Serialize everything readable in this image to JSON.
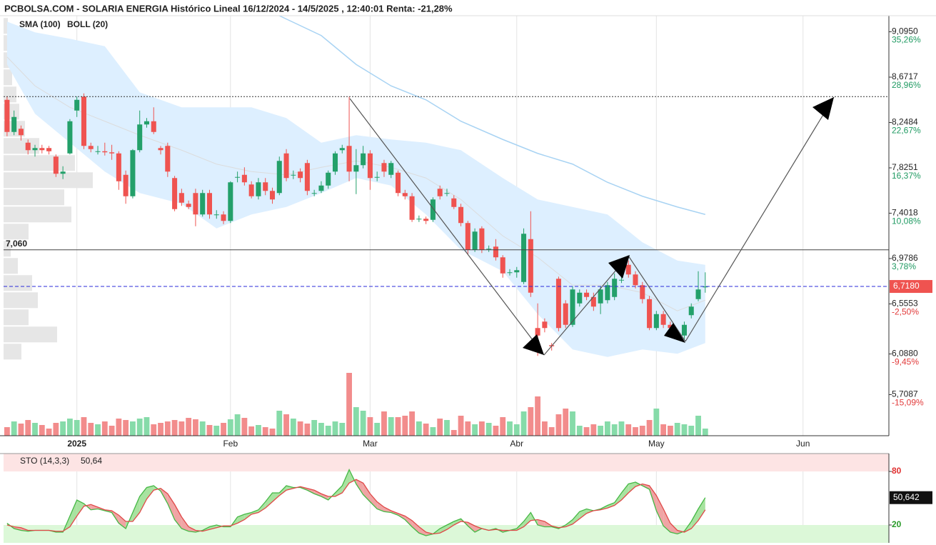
{
  "chart_data": [
    {
      "type": "candlestick",
      "title": "PCBOLSA.COM - SOLARIA ENERGIA Histórico Lineal 16/12/2024 - 14/5/2025 , 12:40:01 Renta: -21,28%",
      "xlim": [
        -0.5,
        126.3
      ],
      "xticks": [
        {
          "value": 10,
          "label": "2025"
        },
        {
          "value": 32,
          "label": "Feb"
        },
        {
          "value": 52,
          "label": "Mar"
        },
        {
          "value": 73,
          "label": "Abr"
        },
        {
          "value": 93,
          "label": "May"
        },
        {
          "value": 114,
          "label": "Jun"
        }
      ],
      "ylim": [
        5.325,
        9.245
      ],
      "yticks": [
        {
          "value": 9.095,
          "label": "9,0950"
        },
        {
          "value": 8.6717,
          "label": "8,6717"
        },
        {
          "value": 8.2484,
          "label": "8,2484"
        },
        {
          "value": 7.8251,
          "label": "7,8251"
        },
        {
          "value": 7.4018,
          "label": "7,4018"
        },
        {
          "value": 6.9786,
          "label": "6,9786"
        },
        {
          "value": 6.5553,
          "label": "6,5553"
        },
        {
          "value": 6.088,
          "label": "6,0880"
        },
        {
          "value": 5.7087,
          "label": "5,7087"
        }
      ],
      "y2lim": [
        -20.8,
        37.49
      ],
      "y2ticks": [
        {
          "value": 35.26,
          "label": "35,26%"
        },
        {
          "value": 28.96,
          "label": "28,96%"
        },
        {
          "value": 22.67,
          "label": "22,67%"
        },
        {
          "value": 16.37,
          "label": "16,37%"
        },
        {
          "value": 10.08,
          "label": "10,08%"
        },
        {
          "value": 3.78,
          "label": "3,78%"
        },
        {
          "value": -2.5,
          "label": "-2,50%"
        },
        {
          "value": -9.45,
          "label": "-9,45%"
        },
        {
          "value": -15.09,
          "label": "-15,09%"
        }
      ],
      "up_color": "#23a06a",
      "down_color": "#ef5350",
      "volume_up_color": "#86dba9",
      "volume_down_color": "#f28c8c",
      "open": [
        8.46,
        8.16,
        8.19,
        8.06,
        7.99,
        8.01,
        8.01,
        7.93,
        7.77,
        7.96,
        8.36,
        8.49,
        8.03,
        7.98,
        7.98,
        7.97,
        7.96,
        7.76,
        7.56,
        7.99,
        8.23,
        8.26,
        8.01,
        8.03,
        7.73,
        7.59,
        7.49,
        7.59,
        7.39,
        7.59,
        7.39,
        7.39,
        7.33,
        7.74,
        7.76,
        7.67,
        7.56,
        7.69,
        7.61,
        7.59,
        7.96,
        7.76,
        7.79,
        7.87,
        7.59,
        7.61,
        7.66,
        7.79,
        7.99,
        8.03,
        7.79,
        7.85,
        7.96,
        7.74,
        7.87,
        7.76,
        7.78,
        7.59,
        7.56,
        7.35,
        7.35,
        7.34,
        7.63,
        7.59,
        7.54,
        7.46,
        7.31,
        7.06,
        7.26,
        7.07,
        7.09,
        6.99,
        6.85,
        6.85,
        6.76,
        7.16,
        6.33,
        6.39,
        6.17,
        6.79,
        6.56,
        6.36,
        6.56,
        6.66,
        6.62,
        6.56,
        6.59,
        6.62,
        6.78,
        6.92,
        6.83,
        6.73,
        6.6,
        6.33,
        6.46,
        6.36,
        6.29,
        6.26,
        6.45,
        6.6,
        6.71
      ],
      "high": [
        8.49,
        8.36,
        8.22,
        8.09,
        8.04,
        8.04,
        8.03,
        7.95,
        7.84,
        8.28,
        8.49,
        8.52,
        8.06,
        8.03,
        8.06,
        8.04,
        7.98,
        7.8,
        8.0,
        8.36,
        8.29,
        8.39,
        8.03,
        8.06,
        7.75,
        7.63,
        7.52,
        7.63,
        7.62,
        7.62,
        7.43,
        7.42,
        7.7,
        7.79,
        7.83,
        7.7,
        7.73,
        7.73,
        7.64,
        7.93,
        8.0,
        7.8,
        7.82,
        7.9,
        7.62,
        7.7,
        7.8,
        7.98,
        8.04,
        8.49,
        8.0,
        8.03,
        7.99,
        7.79,
        7.9,
        7.89,
        7.8,
        7.62,
        7.59,
        7.38,
        7.37,
        7.55,
        7.66,
        7.63,
        7.57,
        7.49,
        7.33,
        7.26,
        7.28,
        7.1,
        7.16,
        7.01,
        6.88,
        6.9,
        7.26,
        7.42,
        6.56,
        6.42,
        6.19,
        6.81,
        6.59,
        6.72,
        6.69,
        6.69,
        6.66,
        6.72,
        6.76,
        6.84,
        6.82,
        6.96,
        6.86,
        6.76,
        6.63,
        6.49,
        6.49,
        6.39,
        6.32,
        6.39,
        6.56,
        6.86,
        6.85
      ],
      "low": [
        8.12,
        8.13,
        8.08,
        7.95,
        7.93,
        7.96,
        7.95,
        7.74,
        7.72,
        7.95,
        8.3,
        8.0,
        7.97,
        7.95,
        7.94,
        7.9,
        7.62,
        7.49,
        7.54,
        7.97,
        8.2,
        8.14,
        7.95,
        7.74,
        7.42,
        7.47,
        7.44,
        7.28,
        7.37,
        7.35,
        7.35,
        7.3,
        7.31,
        7.69,
        7.66,
        7.54,
        7.53,
        7.57,
        7.49,
        7.57,
        7.7,
        7.72,
        7.69,
        7.57,
        7.56,
        7.59,
        7.63,
        7.76,
        7.96,
        7.7,
        7.58,
        7.82,
        7.62,
        7.7,
        7.74,
        7.73,
        7.56,
        7.53,
        7.32,
        7.32,
        7.3,
        7.32,
        7.53,
        7.56,
        7.44,
        7.28,
        7.02,
        7.04,
        7.03,
        7.04,
        6.96,
        6.8,
        6.82,
        6.8,
        6.74,
        6.62,
        6.07,
        6.29,
        6.12,
        6.3,
        6.33,
        6.34,
        6.53,
        6.59,
        6.49,
        6.46,
        6.56,
        6.59,
        6.75,
        6.8,
        6.7,
        6.56,
        6.31,
        6.31,
        6.33,
        6.29,
        6.26,
        6.22,
        6.42,
        6.58,
        6.66
      ],
      "close": [
        8.16,
        8.3,
        8.13,
        7.99,
        8.01,
        7.99,
        7.98,
        7.77,
        7.79,
        8.26,
        8.46,
        8.03,
        8.0,
        7.98,
        7.97,
        7.96,
        7.7,
        7.56,
        7.99,
        8.23,
        8.26,
        8.16,
        7.99,
        7.79,
        7.44,
        7.5,
        7.46,
        7.39,
        7.59,
        7.39,
        7.39,
        7.33,
        7.69,
        7.74,
        7.69,
        7.56,
        7.69,
        7.61,
        7.53,
        7.89,
        7.73,
        7.76,
        7.73,
        7.61,
        7.59,
        7.66,
        7.78,
        7.96,
        8.01,
        7.79,
        7.85,
        7.96,
        7.73,
        7.74,
        7.79,
        7.87,
        7.59,
        7.56,
        7.34,
        7.35,
        7.33,
        7.53,
        7.56,
        7.59,
        7.46,
        7.31,
        7.06,
        7.23,
        7.06,
        7.07,
        6.99,
        6.84,
        6.85,
        6.87,
        7.21,
        6.66,
        6.26,
        6.33,
        6.16,
        6.33,
        6.36,
        6.69,
        6.66,
        6.62,
        6.53,
        6.69,
        6.73,
        6.79,
        6.78,
        6.83,
        6.73,
        6.6,
        6.33,
        6.46,
        6.36,
        6.33,
        6.29,
        6.36,
        6.53,
        6.69,
        6.718
      ],
      "vlim": [
        0,
        100
      ],
      "volume": [
        12,
        20,
        17,
        22,
        18,
        15,
        10,
        18,
        20,
        24,
        22,
        26,
        18,
        16,
        20,
        14,
        24,
        22,
        20,
        24,
        26,
        16,
        18,
        20,
        22,
        20,
        25,
        23,
        20,
        15,
        14,
        18,
        23,
        30,
        25,
        13,
        15,
        12,
        10,
        35,
        30,
        24,
        20,
        17,
        22,
        18,
        14,
        20,
        18,
        88,
        40,
        35,
        26,
        18,
        34,
        26,
        26,
        28,
        34,
        20,
        17,
        12,
        24,
        22,
        8,
        28,
        20,
        16,
        20,
        18,
        14,
        26,
        20,
        16,
        34,
        40,
        55,
        20,
        12,
        30,
        38,
        34,
        14,
        12,
        16,
        14,
        20,
        16,
        20,
        16,
        12,
        14,
        22,
        38,
        16,
        14,
        18,
        16,
        14,
        28,
        10
      ],
      "sma": {
        "name": "SMA (100)",
        "color": "#a8d3f3",
        "x": [
          39,
          45,
          50,
          55,
          60,
          65,
          71,
          76,
          81,
          86,
          91,
          96,
          100
        ],
        "values": [
          9.245,
          9.06,
          8.79,
          8.59,
          8.46,
          8.26,
          8.09,
          7.96,
          7.86,
          7.69,
          7.56,
          7.46,
          7.39
        ]
      },
      "bollinger": {
        "name": "BOLL (20)",
        "color": "#c3d3e0",
        "fill": "#ddefff",
        "x": [
          0,
          4,
          9,
          14,
          19,
          25,
          30,
          35,
          40,
          45,
          50,
          55,
          60,
          65,
          71,
          76,
          81,
          86,
          91,
          96,
          100
        ],
        "upper": [
          9.19,
          9.09,
          9.03,
          8.96,
          8.53,
          8.39,
          8.39,
          8.39,
          8.29,
          8.06,
          8.13,
          8.09,
          8.06,
          7.99,
          7.73,
          7.53,
          7.46,
          7.39,
          7.13,
          6.96,
          6.92
        ],
        "middle": [
          8.86,
          8.59,
          8.39,
          8.26,
          8.13,
          7.99,
          7.86,
          7.79,
          7.76,
          7.83,
          7.89,
          7.83,
          7.73,
          7.53,
          7.19,
          6.99,
          6.73,
          6.73,
          6.66,
          6.49,
          6.59
        ],
        "lower": [
          8.79,
          8.33,
          8.06,
          7.79,
          7.59,
          7.49,
          7.26,
          7.39,
          7.46,
          7.59,
          7.73,
          7.66,
          7.39,
          7.06,
          6.86,
          6.46,
          6.13,
          6.06,
          6.13,
          6.09,
          6.19
        ]
      },
      "volume_profile": {
        "color": "#e6e6e6",
        "bins": [
          9.23,
          9.07,
          8.91,
          8.75,
          8.59,
          8.43,
          8.27,
          8.11,
          7.95,
          7.79,
          7.63,
          7.47,
          7.31,
          7.15,
          6.99,
          6.83,
          6.67,
          6.51,
          6.35,
          6.19,
          6.03
        ],
        "values": [
          6,
          8,
          10,
          12,
          18,
          22,
          30,
          50,
          100,
          125,
          85,
          95,
          35,
          10,
          20,
          40,
          48,
          35,
          75,
          25
        ]
      },
      "hlines": [
        {
          "value": 8.49,
          "style": "dotted",
          "color": "#333333"
        },
        {
          "value": 7.06,
          "label": "7,060",
          "style": "solid",
          "color": "#444444",
          "label_side": "left"
        },
        {
          "value": 6.718,
          "label": "6,7180",
          "style": "dashed",
          "color": "#2b2bd8",
          "label_side": "right",
          "label_fill": "#ef5350"
        }
      ]
    },
    {
      "type": "line",
      "title": "STO (14,3,3)",
      "value_label": "50,64",
      "last_label": "50,642",
      "xlim": [
        -0.5,
        126.3
      ],
      "ylim": [
        0,
        100
      ],
      "yticks": [
        80,
        20
      ],
      "ytick_colors": [
        "#e03030",
        "#2a9a2a"
      ],
      "zone_colors": [
        "#fde4e4",
        "#dcf8d8"
      ],
      "fill_colors": [
        "#a8e3a0",
        "#f0a4a4"
      ],
      "series": [
        {
          "color": "#45b845",
          "values": [
            22,
            16,
            14,
            13,
            14,
            14,
            14,
            12,
            12,
            30,
            48,
            44,
            37,
            38,
            36,
            34,
            22,
            16,
            34,
            52,
            62,
            64,
            58,
            44,
            26,
            16,
            13,
            12,
            14,
            18,
            20,
            18,
            18,
            29,
            32,
            34,
            37,
            46,
            56,
            56,
            64,
            62,
            62,
            59,
            55,
            52,
            48,
            56,
            64,
            82,
            66,
            54,
            46,
            38,
            35,
            34,
            31,
            26,
            18,
            11,
            8,
            10,
            16,
            20,
            24,
            27,
            19,
            12,
            16,
            14,
            16,
            12,
            14,
            16,
            24,
            34,
            20,
            18,
            18,
            16,
            20,
            26,
            35,
            38,
            36,
            38,
            42,
            45,
            56,
            66,
            68,
            64,
            60,
            36,
            19,
            12,
            10,
            13,
            24,
            38,
            50.642
          ]
        },
        {
          "color": "#e04848",
          "values": [
            20,
            18,
            17,
            14,
            14,
            14,
            14,
            13,
            13,
            18,
            30,
            41,
            43,
            40,
            37,
            36,
            31,
            24,
            24,
            34,
            49,
            59,
            61,
            55,
            43,
            29,
            18,
            14,
            13,
            15,
            17,
            19,
            19,
            22,
            26,
            32,
            34,
            39,
            46,
            53,
            59,
            61,
            63,
            61,
            59,
            55,
            52,
            52,
            56,
            67,
            71,
            67,
            55,
            46,
            40,
            36,
            33,
            30,
            25,
            18,
            12,
            10,
            11,
            15,
            20,
            24,
            23,
            19,
            16,
            14,
            15,
            14,
            14,
            14,
            18,
            25,
            26,
            24,
            19,
            17,
            18,
            21,
            27,
            33,
            36,
            37,
            39,
            42,
            48,
            56,
            63,
            66,
            64,
            53,
            38,
            22,
            14,
            12,
            16,
            25,
            37
          ]
        }
      ]
    }
  ]
}
